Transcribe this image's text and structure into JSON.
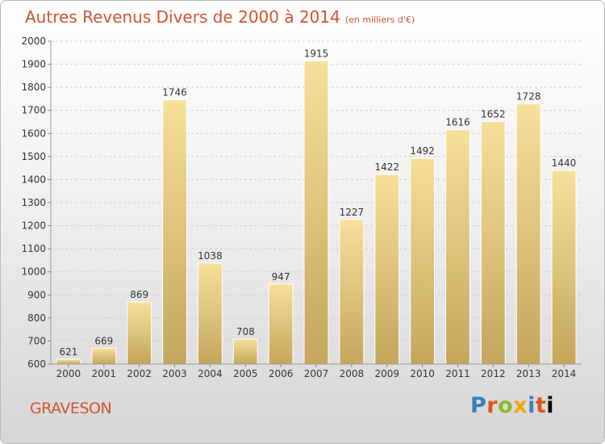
{
  "title": "Autres Revenus Divers de 2000 à 2014",
  "unit_note": "(en milliers d'€)",
  "commune": "GRAVESON",
  "logo_text": "Proxiti",
  "colors": {
    "title": "#d2532e",
    "bar_light": "#f6dd94",
    "bar_dark": "#c6a960",
    "grid": "#cfcfcf",
    "axis_text": "#333333"
  },
  "chart_data": {
    "type": "bar",
    "categories": [
      "2000",
      "2001",
      "2002",
      "2003",
      "2004",
      "2005",
      "2006",
      "2007",
      "2008",
      "2009",
      "2010",
      "2011",
      "2012",
      "2013",
      "2014"
    ],
    "values": [
      621,
      669,
      869,
      1746,
      1038,
      708,
      947,
      1915,
      1227,
      1422,
      1492,
      1616,
      1652,
      1728,
      1440
    ],
    "ylim": [
      600,
      2000
    ],
    "yticks": [
      600,
      700,
      800,
      900,
      1000,
      1100,
      1200,
      1300,
      1400,
      1500,
      1600,
      1700,
      1800,
      1900,
      2000
    ],
    "grid": true,
    "legend": "none"
  }
}
